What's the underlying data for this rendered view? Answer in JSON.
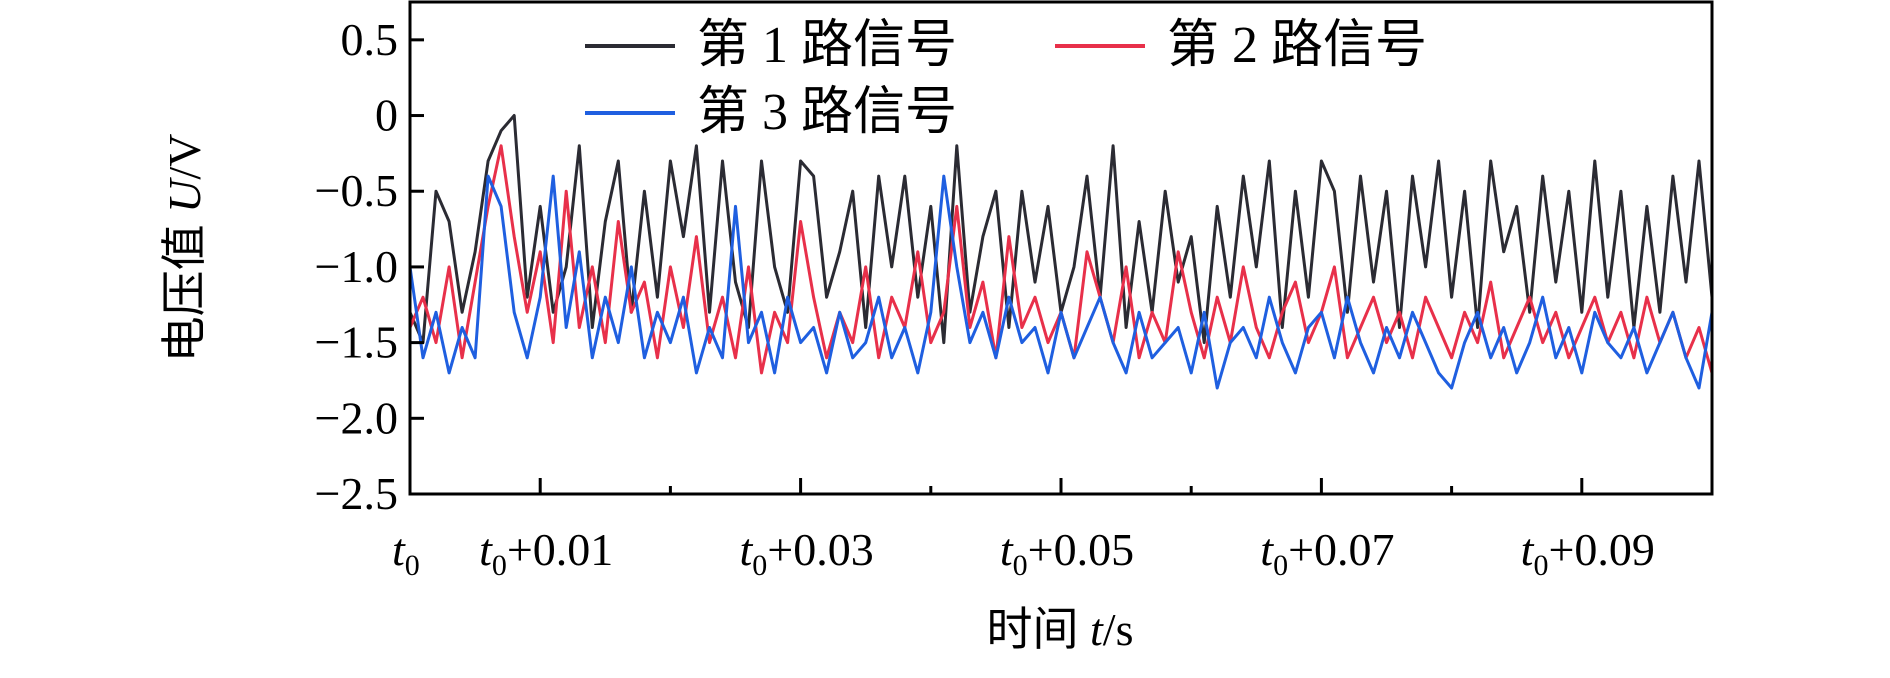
{
  "chart_data": {
    "type": "line",
    "title": "",
    "xlabel": {
      "prefix": "时间 ",
      "var": "t",
      "unit": "/s"
    },
    "ylabel": {
      "prefix": "电压值 ",
      "var": "U",
      "unit": "/V"
    },
    "xlim": [
      0,
      0.1
    ],
    "ylim": [
      -2.5,
      0.75
    ],
    "grid": false,
    "legend_position": "top",
    "y_ticks": [
      0.5,
      0,
      -0.5,
      -1.0,
      -1.5,
      -2.0,
      -2.5
    ],
    "y_tick_labels": [
      "0.5",
      "0",
      "−0.5",
      "−1.0",
      "−1.5",
      "−2.0",
      "−2.5"
    ],
    "x_ticks": [
      0,
      0.01,
      0.03,
      0.05,
      0.07,
      0.09
    ],
    "x_tick_labels": [
      {
        "base": "t",
        "sub": "0",
        "suffix": ""
      },
      {
        "base": "t",
        "sub": "0",
        "suffix": "+0.01"
      },
      {
        "base": "t",
        "sub": "0",
        "suffix": "+0.03"
      },
      {
        "base": "t",
        "sub": "0",
        "suffix": "+0.05"
      },
      {
        "base": "t",
        "sub": "0",
        "suffix": "+0.07"
      },
      {
        "base": "t",
        "sub": "0",
        "suffix": "+0.09"
      }
    ],
    "x_minor_ticks": [
      0.02,
      0.04,
      0.06,
      0.08
    ],
    "series": [
      {
        "name": "第 1 路信号",
        "color": "#2b2b33",
        "x": [
          0,
          0.001,
          0.002,
          0.003,
          0.004,
          0.005,
          0.006,
          0.007,
          0.008,
          0.009,
          0.01,
          0.011,
          0.012,
          0.013,
          0.014,
          0.015,
          0.016,
          0.017,
          0.018,
          0.019,
          0.02,
          0.021,
          0.022,
          0.023,
          0.024,
          0.025,
          0.026,
          0.027,
          0.028,
          0.029,
          0.03,
          0.031,
          0.032,
          0.033,
          0.034,
          0.035,
          0.036,
          0.037,
          0.038,
          0.039,
          0.04,
          0.041,
          0.042,
          0.043,
          0.044,
          0.045,
          0.046,
          0.047,
          0.048,
          0.049,
          0.05,
          0.051,
          0.052,
          0.053,
          0.054,
          0.055,
          0.056,
          0.057,
          0.058,
          0.059,
          0.06,
          0.061,
          0.062,
          0.063,
          0.064,
          0.065,
          0.066,
          0.067,
          0.068,
          0.069,
          0.07,
          0.071,
          0.072,
          0.073,
          0.074,
          0.075,
          0.076,
          0.077,
          0.078,
          0.079,
          0.08,
          0.081,
          0.082,
          0.083,
          0.084,
          0.085,
          0.086,
          0.087,
          0.088,
          0.089,
          0.09,
          0.091,
          0.092,
          0.093,
          0.094,
          0.095,
          0.096,
          0.097,
          0.098,
          0.099,
          0.1
        ],
        "y": [
          -1.3,
          -1.5,
          -0.5,
          -0.7,
          -1.3,
          -0.9,
          -0.3,
          -0.1,
          0.0,
          -1.2,
          -0.6,
          -1.3,
          -1.0,
          -0.2,
          -1.4,
          -0.7,
          -0.3,
          -1.3,
          -0.5,
          -1.2,
          -0.3,
          -0.8,
          -0.2,
          -1.3,
          -0.3,
          -1.1,
          -1.4,
          -0.3,
          -1.0,
          -1.3,
          -0.3,
          -0.4,
          -1.2,
          -0.9,
          -0.5,
          -1.4,
          -0.4,
          -1.0,
          -0.4,
          -1.2,
          -0.6,
          -1.5,
          -0.2,
          -1.3,
          -0.8,
          -0.5,
          -1.4,
          -0.5,
          -1.1,
          -0.6,
          -1.3,
          -1.0,
          -0.4,
          -1.2,
          -0.2,
          -1.4,
          -0.7,
          -1.3,
          -0.5,
          -1.1,
          -0.8,
          -1.5,
          -0.6,
          -1.2,
          -0.4,
          -1.0,
          -0.3,
          -1.4,
          -0.5,
          -1.2,
          -0.3,
          -0.5,
          -1.3,
          -0.4,
          -1.1,
          -0.5,
          -1.4,
          -0.4,
          -1.0,
          -0.3,
          -1.2,
          -0.5,
          -1.4,
          -0.3,
          -0.9,
          -0.6,
          -1.3,
          -0.4,
          -1.1,
          -0.5,
          -1.3,
          -0.3,
          -1.2,
          -0.5,
          -1.4,
          -0.6,
          -1.3,
          -0.4,
          -1.1,
          -0.3,
          -1.2
        ]
      },
      {
        "name": "第 2 路信号",
        "color": "#e8304a",
        "x": [
          0,
          0.001,
          0.002,
          0.003,
          0.004,
          0.005,
          0.006,
          0.007,
          0.008,
          0.009,
          0.01,
          0.011,
          0.012,
          0.013,
          0.014,
          0.015,
          0.016,
          0.017,
          0.018,
          0.019,
          0.02,
          0.021,
          0.022,
          0.023,
          0.024,
          0.025,
          0.026,
          0.027,
          0.028,
          0.029,
          0.03,
          0.031,
          0.032,
          0.033,
          0.034,
          0.035,
          0.036,
          0.037,
          0.038,
          0.039,
          0.04,
          0.041,
          0.042,
          0.043,
          0.044,
          0.045,
          0.046,
          0.047,
          0.048,
          0.049,
          0.05,
          0.051,
          0.052,
          0.053,
          0.054,
          0.055,
          0.056,
          0.057,
          0.058,
          0.059,
          0.06,
          0.061,
          0.062,
          0.063,
          0.064,
          0.065,
          0.066,
          0.067,
          0.068,
          0.069,
          0.07,
          0.071,
          0.072,
          0.073,
          0.074,
          0.075,
          0.076,
          0.077,
          0.078,
          0.079,
          0.08,
          0.081,
          0.082,
          0.083,
          0.084,
          0.085,
          0.086,
          0.087,
          0.088,
          0.089,
          0.09,
          0.091,
          0.092,
          0.093,
          0.094,
          0.095,
          0.096,
          0.097,
          0.098,
          0.099,
          0.1
        ],
        "y": [
          -1.4,
          -1.2,
          -1.5,
          -1.0,
          -1.6,
          -1.1,
          -0.6,
          -0.2,
          -0.8,
          -1.3,
          -0.9,
          -1.5,
          -0.5,
          -1.4,
          -1.0,
          -1.5,
          -0.7,
          -1.3,
          -1.1,
          -1.6,
          -1.0,
          -1.4,
          -0.8,
          -1.5,
          -1.2,
          -1.6,
          -1.0,
          -1.7,
          -1.3,
          -1.5,
          -0.7,
          -1.2,
          -1.6,
          -1.3,
          -1.5,
          -1.0,
          -1.6,
          -1.2,
          -1.4,
          -0.9,
          -1.5,
          -1.3,
          -0.6,
          -1.4,
          -1.1,
          -1.6,
          -0.8,
          -1.4,
          -1.2,
          -1.5,
          -1.3,
          -1.6,
          -0.9,
          -1.2,
          -1.5,
          -1.0,
          -1.6,
          -1.3,
          -1.5,
          -0.9,
          -1.3,
          -1.6,
          -1.2,
          -1.5,
          -1.0,
          -1.4,
          -1.6,
          -1.3,
          -1.1,
          -1.5,
          -1.3,
          -1.0,
          -1.6,
          -1.4,
          -1.2,
          -1.5,
          -1.3,
          -1.6,
          -1.2,
          -1.4,
          -1.6,
          -1.3,
          -1.5,
          -1.1,
          -1.6,
          -1.4,
          -1.2,
          -1.5,
          -1.3,
          -1.6,
          -1.4,
          -1.2,
          -1.5,
          -1.3,
          -1.6,
          -1.2,
          -1.5,
          -1.3,
          -1.6,
          -1.4,
          -1.7
        ]
      },
      {
        "name": "第 3 路信号",
        "color": "#1f5fe0",
        "x": [
          0,
          0.001,
          0.002,
          0.003,
          0.004,
          0.005,
          0.006,
          0.007,
          0.008,
          0.009,
          0.01,
          0.011,
          0.012,
          0.013,
          0.014,
          0.015,
          0.016,
          0.017,
          0.018,
          0.019,
          0.02,
          0.021,
          0.022,
          0.023,
          0.024,
          0.025,
          0.026,
          0.027,
          0.028,
          0.029,
          0.03,
          0.031,
          0.032,
          0.033,
          0.034,
          0.035,
          0.036,
          0.037,
          0.038,
          0.039,
          0.04,
          0.041,
          0.042,
          0.043,
          0.044,
          0.045,
          0.046,
          0.047,
          0.048,
          0.049,
          0.05,
          0.051,
          0.052,
          0.053,
          0.054,
          0.055,
          0.056,
          0.057,
          0.058,
          0.059,
          0.06,
          0.061,
          0.062,
          0.063,
          0.064,
          0.065,
          0.066,
          0.067,
          0.068,
          0.069,
          0.07,
          0.071,
          0.072,
          0.073,
          0.074,
          0.075,
          0.076,
          0.077,
          0.078,
          0.079,
          0.08,
          0.081,
          0.082,
          0.083,
          0.084,
          0.085,
          0.086,
          0.087,
          0.088,
          0.089,
          0.09,
          0.091,
          0.092,
          0.093,
          0.094,
          0.095,
          0.096,
          0.097,
          0.098,
          0.099,
          0.1
        ],
        "y": [
          -1.0,
          -1.6,
          -1.3,
          -1.7,
          -1.4,
          -1.6,
          -0.4,
          -0.6,
          -1.3,
          -1.6,
          -1.2,
          -0.4,
          -1.4,
          -0.9,
          -1.6,
          -1.2,
          -1.5,
          -1.0,
          -1.6,
          -1.3,
          -1.5,
          -1.2,
          -1.7,
          -1.4,
          -1.6,
          -0.6,
          -1.5,
          -1.3,
          -1.7,
          -1.2,
          -1.5,
          -1.4,
          -1.7,
          -1.3,
          -1.6,
          -1.5,
          -1.2,
          -1.6,
          -1.4,
          -1.7,
          -1.3,
          -0.4,
          -1.0,
          -1.5,
          -1.3,
          -1.6,
          -1.2,
          -1.5,
          -1.4,
          -1.7,
          -1.3,
          -1.6,
          -1.4,
          -1.2,
          -1.5,
          -1.7,
          -1.3,
          -1.6,
          -1.5,
          -1.4,
          -1.7,
          -1.3,
          -1.8,
          -1.5,
          -1.4,
          -1.6,
          -1.2,
          -1.5,
          -1.7,
          -1.4,
          -1.3,
          -1.6,
          -1.2,
          -1.5,
          -1.7,
          -1.4,
          -1.6,
          -1.3,
          -1.5,
          -1.7,
          -1.8,
          -1.5,
          -1.3,
          -1.6,
          -1.4,
          -1.7,
          -1.5,
          -1.2,
          -1.6,
          -1.4,
          -1.7,
          -1.3,
          -1.5,
          -1.6,
          -1.4,
          -1.7,
          -1.5,
          -1.3,
          -1.6,
          -1.8,
          -1.3
        ]
      }
    ]
  }
}
